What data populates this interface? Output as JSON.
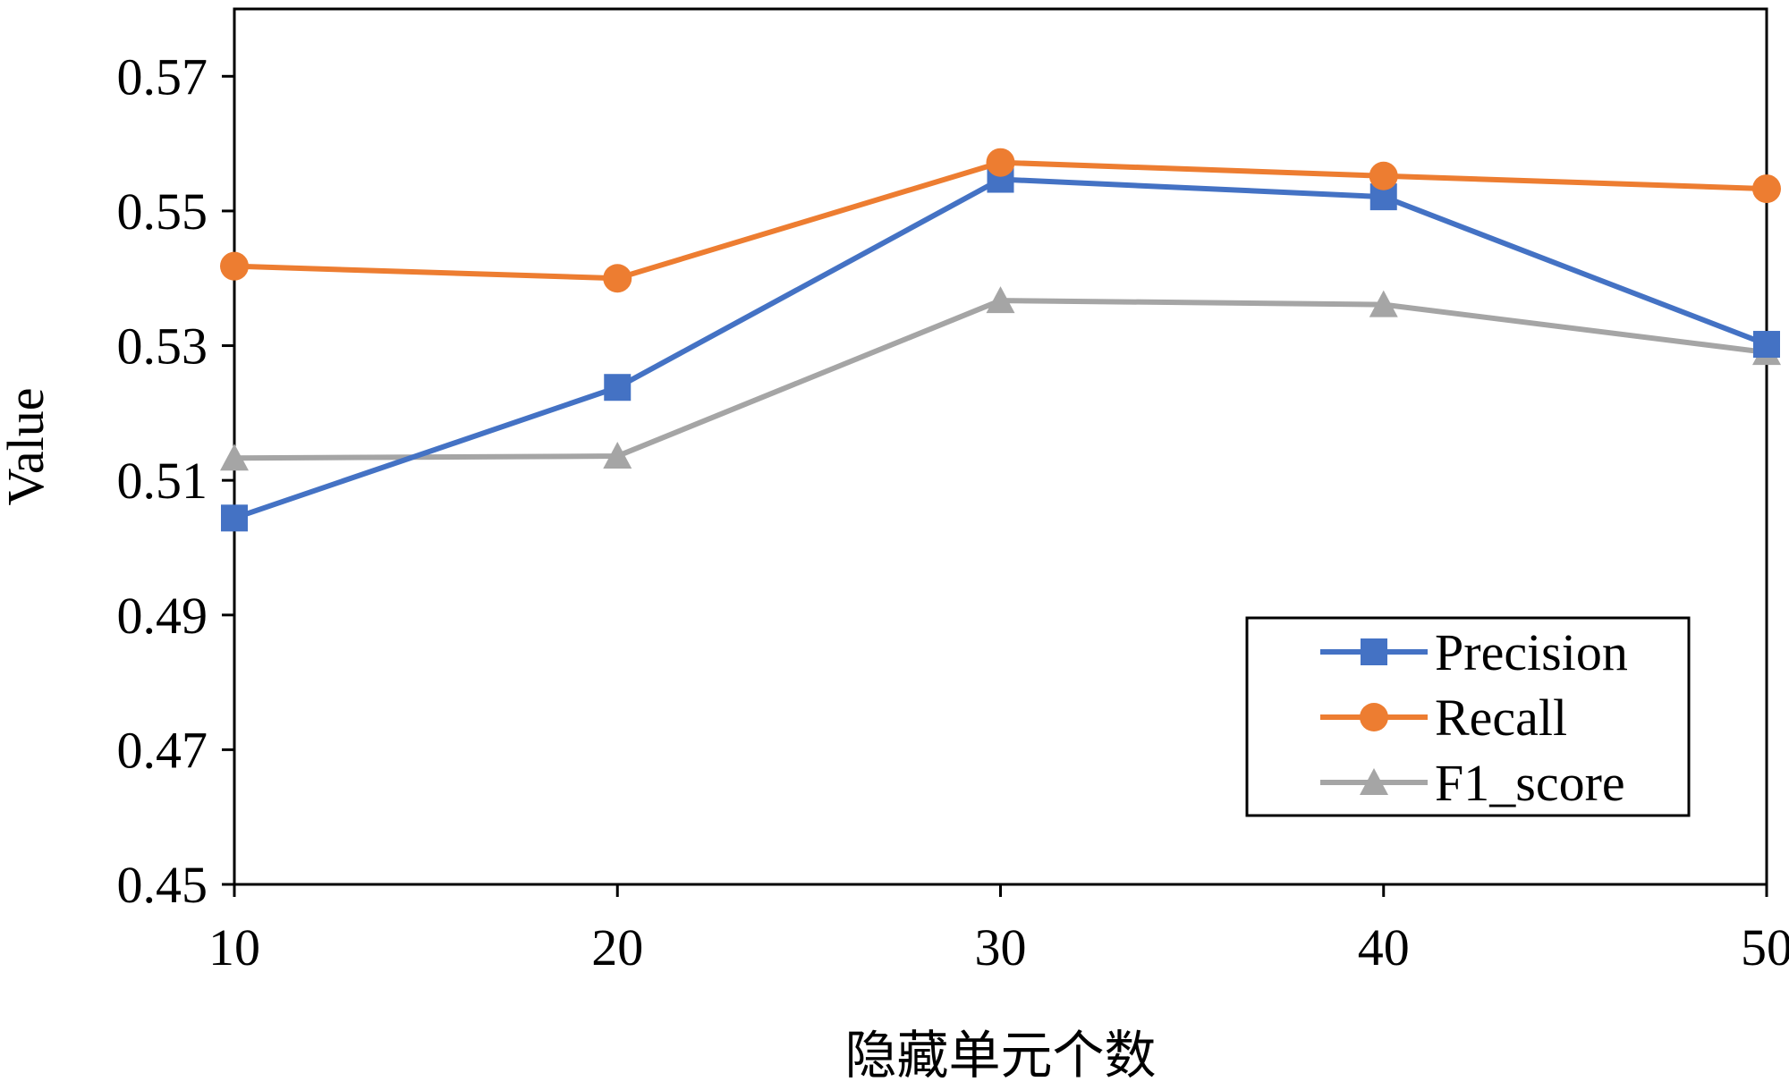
{
  "chart_data": {
    "type": "line",
    "title": "",
    "xlabel": "隐藏单元个数",
    "ylabel": "Value",
    "x": [
      10,
      20,
      30,
      40,
      50
    ],
    "x_tick_labels": [
      "10",
      "20",
      "30",
      "40",
      "50"
    ],
    "ylim": [
      0.45,
      0.58
    ],
    "y_ticks": [
      0.45,
      0.47,
      0.49,
      0.51,
      0.53,
      0.55,
      0.57
    ],
    "y_tick_labels": [
      "0.45",
      "0.47",
      "0.49",
      "0.51",
      "0.53",
      "0.55",
      "0.57"
    ],
    "grid": false,
    "legend_position": "bottom-right",
    "series": [
      {
        "name": "Precision",
        "values": [
          0.5044,
          0.5238,
          0.5547,
          0.5521,
          0.5302
        ],
        "color": "#4472C4",
        "marker": "square"
      },
      {
        "name": "Recall",
        "values": [
          0.5418,
          0.54,
          0.5572,
          0.5552,
          0.5533
        ],
        "color": "#ED7D31",
        "marker": "circle"
      },
      {
        "name": "F1_score",
        "values": [
          0.5133,
          0.5136,
          0.5367,
          0.5361,
          0.529
        ],
        "color": "#A5A5A5",
        "marker": "triangle"
      }
    ]
  }
}
